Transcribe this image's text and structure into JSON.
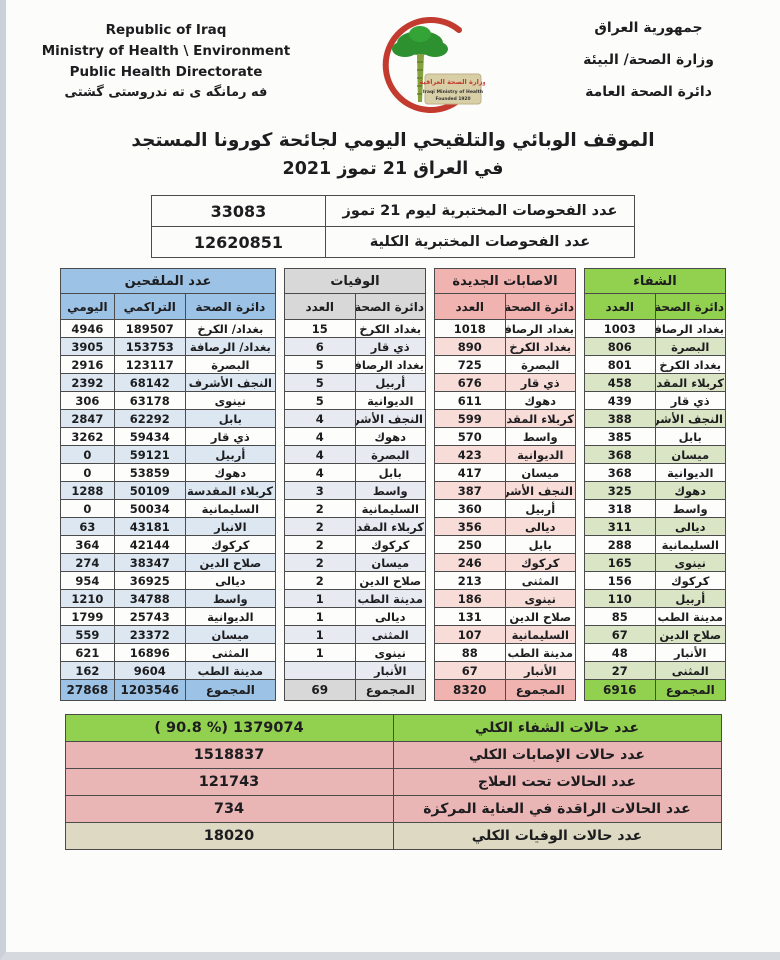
{
  "colors": {
    "green_header": "#92d050",
    "green_tint": "#d9e5c5",
    "pink_header": "#f0b3af",
    "pink_tint": "#f7dcd8",
    "gray_header": "#d8d8d8",
    "gray_tint": "#e7ebf1",
    "blue_header": "#9cc2e5",
    "blue_tint": "#dce7f2",
    "summary_pink": "#eab5b5",
    "summary_tan": "#ddd9c3",
    "crescent_red": "#c23b2e",
    "palm_green": "#2e9130"
  },
  "header": {
    "english_line1": "Republic of Iraq",
    "english_line2": "Ministry of Health \\ Environment",
    "english_line3": "Public Health Directorate",
    "kurdish_line": "فه رمانگه ی ته ندروستی گشتی",
    "arabic_line1": "جمهورية العراق",
    "arabic_line2": "وزارة الصحة/ البيئة",
    "arabic_line3": "دائرة الصحة العامة",
    "logo_banner_line1": "وزارة الصحة العراقية",
    "logo_banner_line2": "Iraqi Ministry of Health",
    "logo_banner_line3": "Founded 1920"
  },
  "title": {
    "line1": "الموقف الوبائي والتلقيحي اليومي لجائحة كورونا المستجد",
    "line2": "في العراق 21  تموز 2021"
  },
  "tests": {
    "rows": [
      {
        "label": "عدد الفحوصات المختبرية  ليوم 21 تموز",
        "value": "33083"
      },
      {
        "label": "عدد الفحوصات المختبرية الكلية",
        "value": "12620851"
      }
    ]
  },
  "recovery": {
    "title": "الشفاء",
    "col_directorate": "دائرة الصحة",
    "col_count": "العدد",
    "rows": [
      {
        "name": "بغداد الرصافة",
        "count": "1003"
      },
      {
        "name": "البصرة",
        "count": "806"
      },
      {
        "name": "بغداد الكرخ",
        "count": "801"
      },
      {
        "name": "كربلاء المقدسة",
        "count": "458"
      },
      {
        "name": "ذي قار",
        "count": "439"
      },
      {
        "name": "النجف الأشرف",
        "count": "388"
      },
      {
        "name": "بابل",
        "count": "385"
      },
      {
        "name": "ميسان",
        "count": "368"
      },
      {
        "name": "الديوانية",
        "count": "368"
      },
      {
        "name": "دهوك",
        "count": "325"
      },
      {
        "name": "واسط",
        "count": "318"
      },
      {
        "name": "ديالى",
        "count": "311"
      },
      {
        "name": "السليمانية",
        "count": "288"
      },
      {
        "name": "نينوى",
        "count": "165"
      },
      {
        "name": "كركوك",
        "count": "156"
      },
      {
        "name": "أربيل",
        "count": "110"
      },
      {
        "name": "مدينة الطب",
        "count": "85"
      },
      {
        "name": "صلاح الدين",
        "count": "67"
      },
      {
        "name": "الأنبار",
        "count": "48"
      },
      {
        "name": "المثنى",
        "count": "27"
      }
    ],
    "total_label": "المجموع",
    "total_count": "6916"
  },
  "new_cases": {
    "title": "الاصابات الجديدة",
    "col_directorate": "دائرة الصحة",
    "col_count": "العدد",
    "rows": [
      {
        "name": "بغداد الرصافة",
        "count": "1018"
      },
      {
        "name": "بغداد الكرخ",
        "count": "890"
      },
      {
        "name": "البصرة",
        "count": "725"
      },
      {
        "name": "ذي قار",
        "count": "676"
      },
      {
        "name": "دهوك",
        "count": "611"
      },
      {
        "name": "كربلاء المقدسة",
        "count": "599"
      },
      {
        "name": "واسط",
        "count": "570"
      },
      {
        "name": "الديوانية",
        "count": "423"
      },
      {
        "name": "ميسان",
        "count": "417"
      },
      {
        "name": "النجف الأشرف",
        "count": "387"
      },
      {
        "name": "أربيل",
        "count": "360"
      },
      {
        "name": "ديالى",
        "count": "356"
      },
      {
        "name": "بابل",
        "count": "250"
      },
      {
        "name": "كركوك",
        "count": "246"
      },
      {
        "name": "المثنى",
        "count": "213"
      },
      {
        "name": "نينوى",
        "count": "186"
      },
      {
        "name": "صلاح الدين",
        "count": "131"
      },
      {
        "name": "السليمانية",
        "count": "107"
      },
      {
        "name": "مدينة الطب",
        "count": "88"
      },
      {
        "name": "الأنبار",
        "count": "67"
      }
    ],
    "total_label": "المجموع",
    "total_count": "8320"
  },
  "deaths": {
    "title": "الوفيات",
    "col_directorate": "دائرة الصحة",
    "col_count": "العدد",
    "rows": [
      {
        "name": "بغداد الكرخ",
        "count": "15"
      },
      {
        "name": "ذي قار",
        "count": "6"
      },
      {
        "name": "بغداد الرصافة",
        "count": "5"
      },
      {
        "name": "أربيل",
        "count": "5"
      },
      {
        "name": "الديوانية",
        "count": "5"
      },
      {
        "name": "النجف الأشرف",
        "count": "4"
      },
      {
        "name": "دهوك",
        "count": "4"
      },
      {
        "name": "البصرة",
        "count": "4"
      },
      {
        "name": "بابل",
        "count": "4"
      },
      {
        "name": "واسط",
        "count": "3"
      },
      {
        "name": "السليمانية",
        "count": "2"
      },
      {
        "name": "كربلاء المقدسة",
        "count": "2"
      },
      {
        "name": "كركوك",
        "count": "2"
      },
      {
        "name": "ميسان",
        "count": "2"
      },
      {
        "name": "صلاح الدين",
        "count": "2"
      },
      {
        "name": "مدينة الطب",
        "count": "1"
      },
      {
        "name": "ديالى",
        "count": "1"
      },
      {
        "name": "المثنى",
        "count": "1"
      },
      {
        "name": "نينوى",
        "count": "1"
      },
      {
        "name": "الأنبار",
        "count": ""
      }
    ],
    "total_label": "المجموع",
    "total_count": "69"
  },
  "vaccinated": {
    "title": "عدد الملقحين",
    "col_directorate": "دائرة الصحة",
    "col_cumulative": "التراكمي",
    "col_daily": "اليومي",
    "rows": [
      {
        "name": "بغداد/ الكرخ",
        "cumulative": "189507",
        "daily": "4946"
      },
      {
        "name": "بغداد/ الرصافة",
        "cumulative": "153753",
        "daily": "3905"
      },
      {
        "name": "البصرة",
        "cumulative": "123117",
        "daily": "2916"
      },
      {
        "name": "النجف الأشرف",
        "cumulative": "68142",
        "daily": "2392"
      },
      {
        "name": "نينوى",
        "cumulative": "63178",
        "daily": "306"
      },
      {
        "name": "بابل",
        "cumulative": "62292",
        "daily": "2847"
      },
      {
        "name": "ذي قار",
        "cumulative": "59434",
        "daily": "3262"
      },
      {
        "name": "أربيل",
        "cumulative": "59121",
        "daily": "0"
      },
      {
        "name": "دهوك",
        "cumulative": "53859",
        "daily": "0"
      },
      {
        "name": "كربلاء المقدسة",
        "cumulative": "50109",
        "daily": "1288"
      },
      {
        "name": "السليمانية",
        "cumulative": "50034",
        "daily": "0"
      },
      {
        "name": "الانبار",
        "cumulative": "43181",
        "daily": "63"
      },
      {
        "name": "كركوك",
        "cumulative": "42144",
        "daily": "364"
      },
      {
        "name": "صلاح الدين",
        "cumulative": "38347",
        "daily": "274"
      },
      {
        "name": "ديالى",
        "cumulative": "36925",
        "daily": "954"
      },
      {
        "name": "واسط",
        "cumulative": "34788",
        "daily": "1210"
      },
      {
        "name": "الديوانية",
        "cumulative": "25743",
        "daily": "1799"
      },
      {
        "name": "ميسان",
        "cumulative": "23372",
        "daily": "559"
      },
      {
        "name": "المثنى",
        "cumulative": "16896",
        "daily": "621"
      },
      {
        "name": "مدينة الطب",
        "cumulative": "9604",
        "daily": "162"
      }
    ],
    "total_label": "المجموع",
    "total_cumulative": "1203546",
    "total_daily": "27868"
  },
  "summary": {
    "rows": [
      {
        "label": "عدد حالات الشفاء الكلي",
        "value": "( 90.8 %)  1379074",
        "style": "green"
      },
      {
        "label": "عدد حالات الإصابات الكلي",
        "value": "1518837",
        "style": "pink"
      },
      {
        "label": "عدد الحالات تحت العلاج",
        "value": "121743",
        "style": "pink"
      },
      {
        "label": "عدد الحالات الراقدة في العناية المركزة",
        "value": "734",
        "style": "pink"
      },
      {
        "label": "عدد حالات الوفيات الكلي",
        "value": "18020",
        "style": "tan"
      }
    ]
  }
}
